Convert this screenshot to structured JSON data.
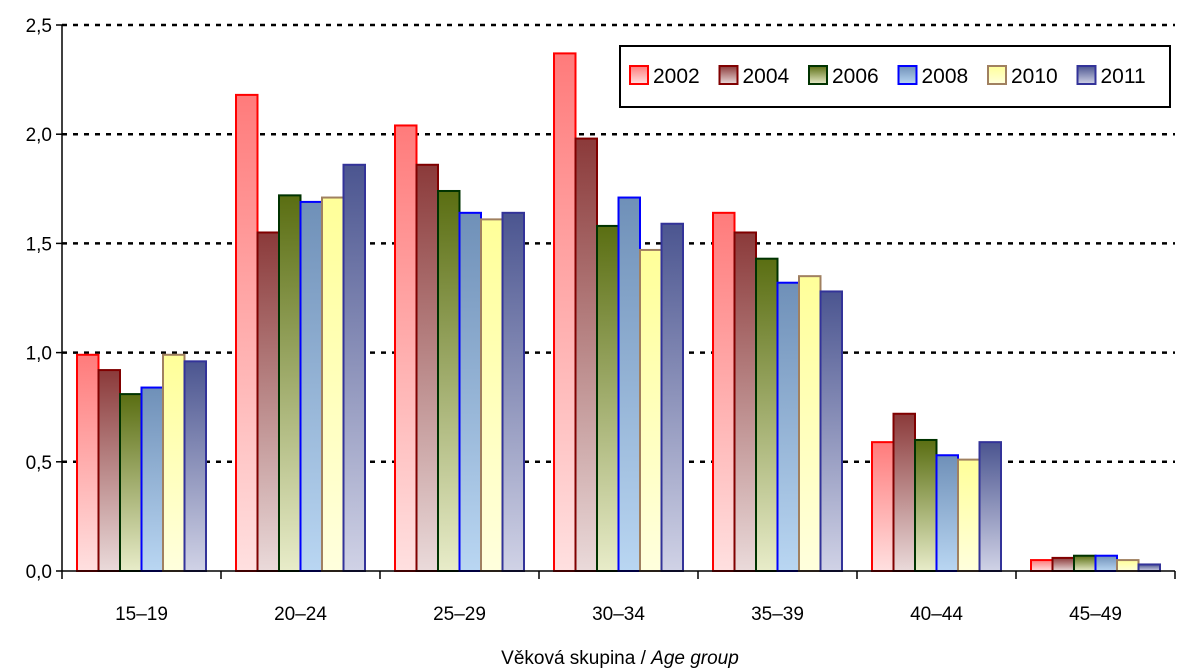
{
  "chart_data": {
    "type": "bar",
    "categories": [
      "15–19",
      "20–24",
      "25–29",
      "30–34",
      "35–39",
      "40–44",
      "45–49"
    ],
    "series": [
      {
        "name": "2002",
        "values": [
          0.99,
          2.18,
          2.04,
          2.37,
          1.64,
          0.59,
          0.05
        ],
        "color_top": "#ff7b7b",
        "color_bottom": "#ffe0e0",
        "border": "#ff0000"
      },
      {
        "name": "2004",
        "values": [
          0.92,
          1.55,
          1.86,
          1.98,
          1.55,
          0.72,
          0.06
        ],
        "color_top": "#8b3a3a",
        "color_bottom": "#eadada",
        "border": "#800000"
      },
      {
        "name": "2006",
        "values": [
          0.81,
          1.72,
          1.74,
          1.58,
          1.43,
          0.6,
          0.07
        ],
        "color_top": "#5a6e12",
        "color_bottom": "#e8ecc9",
        "border": "#003300"
      },
      {
        "name": "2008",
        "values": [
          0.84,
          1.69,
          1.64,
          1.71,
          1.32,
          0.53,
          0.07
        ],
        "color_top": "#6f90b8",
        "color_bottom": "#b9d6f2",
        "border": "#0000ff"
      },
      {
        "name": "2010",
        "values": [
          0.99,
          1.71,
          1.61,
          1.47,
          1.35,
          0.51,
          0.05
        ],
        "color_top": "#ffff99",
        "color_bottom": "#ffffdd",
        "border": "#a08060"
      },
      {
        "name": "2011",
        "values": [
          0.96,
          1.86,
          1.64,
          1.59,
          1.28,
          0.59,
          0.03
        ],
        "color_top": "#4b5590",
        "color_bottom": "#d0d2e6",
        "border": "#333399"
      }
    ],
    "yticks": [
      "0,0",
      "0,5",
      "1,0",
      "1,5",
      "2,0",
      "2,5"
    ],
    "ylim": [
      0,
      2.5
    ],
    "xlabel_main": "Věková skupina / ",
    "xlabel_italic": "Age group",
    "grid": "dotted horizontal",
    "legend_position": "top-right"
  }
}
